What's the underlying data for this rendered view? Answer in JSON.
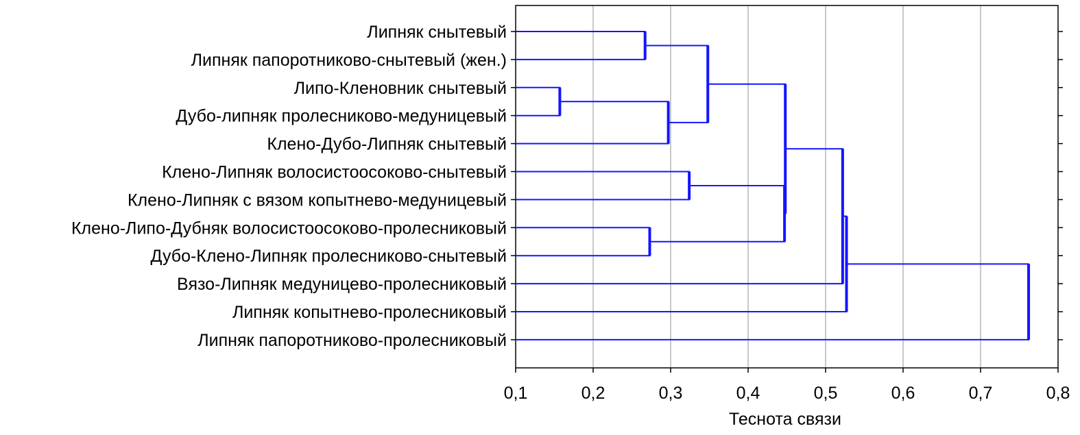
{
  "chart_data": {
    "type": "dendrogram",
    "orientation": "horizontal",
    "title": "",
    "xlabel": "Теснота связи",
    "ylabel": "",
    "xlim": [
      0.1,
      0.8
    ],
    "xticks": [
      "0,1",
      "0,2",
      "0,3",
      "0,4",
      "0,5",
      "0,6",
      "0,7",
      "0,8"
    ],
    "xtick_values": [
      0.1,
      0.2,
      0.3,
      0.4,
      0.5,
      0.6,
      0.7,
      0.8
    ],
    "grid": "vertical",
    "line_color": "#1414ff",
    "leaves": [
      "Липняк снытевый",
      "Липняк папоротниково-снытевый (жен.)",
      "Липо-Кленовник снытевый",
      "Дубо-липняк пролесниково-медуницевый",
      "Клено-Дубо-Липняк снытевый",
      "Клено-Липняк волосистоосоково-снытевый",
      "Клено-Липняк с вязом копытнево-медуницевый",
      "Клено-Липо-Дубняк волосистоосоково-пролесниковый",
      "Дубо-Клено-Липняк пролесниково-снытевый",
      "Вязо-Липняк медуницево-пролесниковый",
      "Липняк копытнево-пролесниковый",
      "Липняк папоротниково-пролесниковый"
    ],
    "merges": [
      {
        "id": "c1",
        "left": 2,
        "right": 3,
        "height": 0.157
      },
      {
        "id": "c2",
        "left": 0,
        "right": 1,
        "height": 0.267
      },
      {
        "id": "c3",
        "left": 7,
        "right": 8,
        "height": 0.273
      },
      {
        "id": "c4",
        "left": "c1",
        "right": 4,
        "height": 0.297
      },
      {
        "id": "c5",
        "left": 5,
        "right": 6,
        "height": 0.324
      },
      {
        "id": "c6",
        "left": "c2",
        "right": "c4",
        "height": 0.348
      },
      {
        "id": "c7",
        "left": "c5",
        "right": "c3",
        "height": 0.447
      },
      {
        "id": "c8",
        "left": "c6",
        "right": "c7",
        "height": 0.448
      },
      {
        "id": "c9",
        "left": "c8",
        "right": 9,
        "height": 0.522
      },
      {
        "id": "c10",
        "left": "c9",
        "right": 10,
        "height": 0.527
      },
      {
        "id": "c11",
        "left": "c10",
        "right": 11,
        "height": 0.762
      }
    ]
  }
}
